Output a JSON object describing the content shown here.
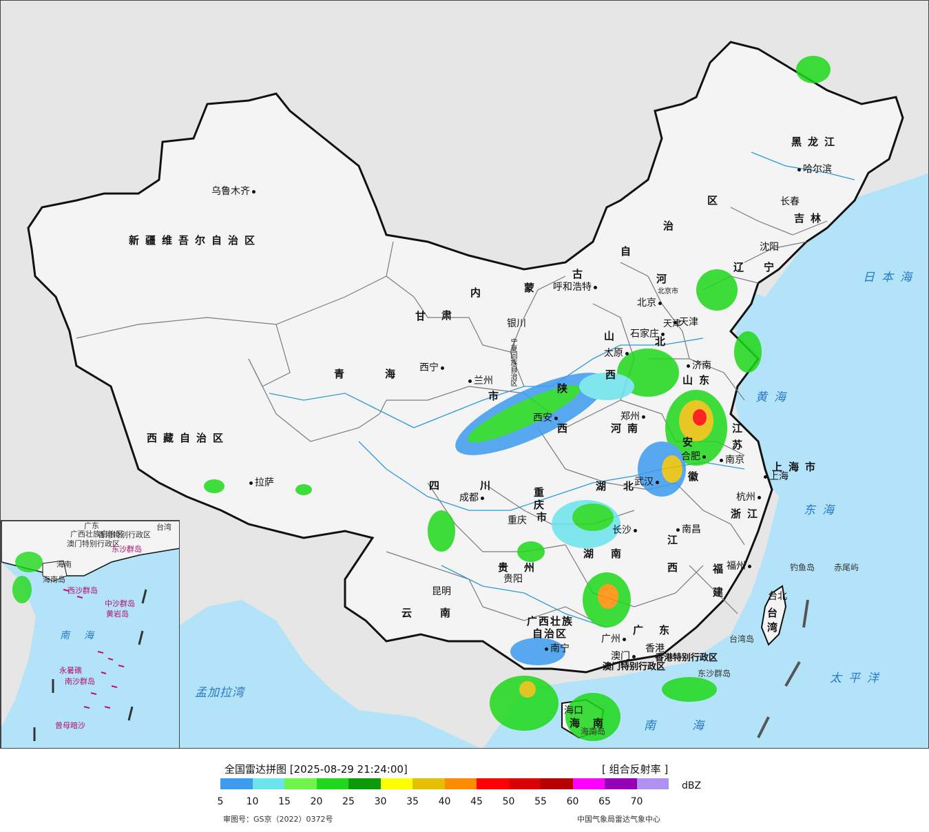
{
  "map": {
    "colors": {
      "sea": "#b3e3f8",
      "land_inside": "#f4f4f4",
      "land_outside": "#e6e6e6",
      "border": "#111111",
      "province_border": "#7a7a7a",
      "rivers": "#2a9ad8"
    },
    "provinces": [
      {
        "id": "xinjiang",
        "text": "新疆维吾尔自治区"
      },
      {
        "id": "xizang",
        "text": "西藏自治区"
      },
      {
        "id": "qinghai-a",
        "text": "青"
      },
      {
        "id": "qinghai-b",
        "text": "海"
      },
      {
        "id": "gansu-a",
        "text": "甘"
      },
      {
        "id": "gansu-b",
        "text": "肃"
      },
      {
        "id": "neimeng-a",
        "text": "内"
      },
      {
        "id": "neimeng-b",
        "text": "蒙"
      },
      {
        "id": "neimeng-c",
        "text": "古"
      },
      {
        "id": "neimeng-d",
        "text": "自"
      },
      {
        "id": "neimeng-e",
        "text": "治"
      },
      {
        "id": "neimeng-f",
        "text": "区"
      },
      {
        "id": "heilongjiang",
        "text": "黑龙江"
      },
      {
        "id": "jilin",
        "text": "吉林"
      },
      {
        "id": "liaoning-a",
        "text": "辽"
      },
      {
        "id": "liaoning-b",
        "text": "宁"
      },
      {
        "id": "hebei-a",
        "text": "河"
      },
      {
        "id": "hebei-b",
        "text": "北"
      },
      {
        "id": "shanxi-a",
        "text": "山"
      },
      {
        "id": "shanxi-b",
        "text": "西"
      },
      {
        "id": "shaanxi-a",
        "text": "陕"
      },
      {
        "id": "shaanxi-b",
        "text": "西"
      },
      {
        "id": "shandong",
        "text": "山东"
      },
      {
        "id": "henan",
        "text": "河南"
      },
      {
        "id": "jiangsu-a",
        "text": "江"
      },
      {
        "id": "jiangsu-b",
        "text": "苏"
      },
      {
        "id": "anhui-a",
        "text": "安"
      },
      {
        "id": "anhui-b",
        "text": "徽"
      },
      {
        "id": "shanghai",
        "text": "上海市"
      },
      {
        "id": "zhejiang",
        "text": "浙江"
      },
      {
        "id": "hubei-a",
        "text": "湖"
      },
      {
        "id": "hubei-b",
        "text": "北"
      },
      {
        "id": "sichuan-a",
        "text": "四"
      },
      {
        "id": "sichuan-b",
        "text": "川"
      },
      {
        "id": "chongqing-a",
        "text": "重"
      },
      {
        "id": "chongqing-b",
        "text": "庆"
      },
      {
        "id": "chongqing-c",
        "text": "市"
      },
      {
        "id": "hunan-a",
        "text": "湖"
      },
      {
        "id": "hunan-b",
        "text": "南"
      },
      {
        "id": "jiangxi-a",
        "text": "江"
      },
      {
        "id": "jiangxi-b",
        "text": "西"
      },
      {
        "id": "fujian-a",
        "text": "福"
      },
      {
        "id": "fujian-b",
        "text": "建"
      },
      {
        "id": "guizhou-a",
        "text": "贵"
      },
      {
        "id": "guizhou-b",
        "text": "州"
      },
      {
        "id": "yunnan-a",
        "text": "云"
      },
      {
        "id": "yunnan-b",
        "text": "南"
      },
      {
        "id": "guangxi-a",
        "text": "广西壮族"
      },
      {
        "id": "guangxi-b",
        "text": "自治区"
      },
      {
        "id": "guangdong-a",
        "text": "广"
      },
      {
        "id": "guangdong-b",
        "text": "东"
      },
      {
        "id": "hainan-a",
        "text": "海"
      },
      {
        "id": "hainan-b",
        "text": "南"
      },
      {
        "id": "taiwan-a",
        "text": "台"
      },
      {
        "id": "taiwan-b",
        "text": "湾"
      },
      {
        "id": "ningxia",
        "text": "宁夏回族自治区"
      },
      {
        "id": "tianjin",
        "text": "天津"
      },
      {
        "id": "hongkong",
        "text": "香港特别行政区"
      },
      {
        "id": "macau",
        "text": "澳门特别行政区"
      },
      {
        "id": "gansu-shi",
        "text": "市"
      }
    ],
    "seas": [
      {
        "id": "japan-sea",
        "text": "日本海"
      },
      {
        "id": "yellow-sea",
        "text": "黄海"
      },
      {
        "id": "east-sea",
        "text": "东海"
      },
      {
        "id": "pacific",
        "text": "太平洋"
      },
      {
        "id": "south-sea-a",
        "text": "南"
      },
      {
        "id": "south-sea-b",
        "text": "海"
      },
      {
        "id": "bengal",
        "text": "孟加拉湾"
      }
    ],
    "islands": [
      {
        "id": "diaoyu",
        "text": "钓鱼岛"
      },
      {
        "id": "chiwei",
        "text": "赤尾屿"
      },
      {
        "id": "taiwan-island",
        "text": "台湾岛"
      },
      {
        "id": "dongsha",
        "text": "东沙群岛"
      },
      {
        "id": "hainan-island",
        "text": "海南岛"
      }
    ],
    "cities": [
      {
        "id": "urumqi",
        "text": "乌鲁木齐"
      },
      {
        "id": "lhasa",
        "text": "拉萨"
      },
      {
        "id": "xining",
        "text": "西宁"
      },
      {
        "id": "lanzhou",
        "text": "兰州"
      },
      {
        "id": "yinchuan",
        "text": "银川"
      },
      {
        "id": "hohhot",
        "text": "呼和浩特"
      },
      {
        "id": "beijing",
        "text": "北京"
      },
      {
        "id": "beijing-city",
        "text": "北京市"
      },
      {
        "id": "tianjin-city",
        "text": "天津"
      },
      {
        "id": "shijiazhuang",
        "text": "石家庄"
      },
      {
        "id": "taiyuan",
        "text": "太原"
      },
      {
        "id": "jinan",
        "text": "济南"
      },
      {
        "id": "zhengzhou",
        "text": "郑州"
      },
      {
        "id": "xian",
        "text": "西安"
      },
      {
        "id": "nanjing",
        "text": "南京"
      },
      {
        "id": "hefei",
        "text": "合肥"
      },
      {
        "id": "shanghai-city",
        "text": "上海"
      },
      {
        "id": "hangzhou",
        "text": "杭州"
      },
      {
        "id": "wuhan",
        "text": "武汉"
      },
      {
        "id": "chengdu",
        "text": "成都"
      },
      {
        "id": "chongqing-city",
        "text": "重庆"
      },
      {
        "id": "changsha",
        "text": "长沙"
      },
      {
        "id": "nanchang",
        "text": "南昌"
      },
      {
        "id": "fuzhou",
        "text": "福州"
      },
      {
        "id": "taipei",
        "text": "台北"
      },
      {
        "id": "guiyang",
        "text": "贵阳"
      },
      {
        "id": "kunming",
        "text": "昆明"
      },
      {
        "id": "nanning",
        "text": "南宁"
      },
      {
        "id": "guangzhou",
        "text": "广州"
      },
      {
        "id": "hongkong-city",
        "text": "香港"
      },
      {
        "id": "macau-city",
        "text": "澳门"
      },
      {
        "id": "haikou",
        "text": "海口"
      },
      {
        "id": "shenyang",
        "text": "沈阳"
      },
      {
        "id": "changchun",
        "text": "长春"
      },
      {
        "id": "harbin",
        "text": "哈尔滨"
      }
    ],
    "inset": {
      "labels": [
        {
          "id": "i-guangxi",
          "text": "广西壮族自治区"
        },
        {
          "id": "i-guangdong",
          "text": "广东"
        },
        {
          "id": "i-hk",
          "text": "香港特别行政区"
        },
        {
          "id": "i-macau",
          "text": "澳门特别行政区"
        },
        {
          "id": "i-taiwan",
          "text": "台湾"
        },
        {
          "id": "i-dongsha",
          "text": "东沙群岛"
        },
        {
          "id": "i-hainan",
          "text": "海南"
        },
        {
          "id": "i-hainan-island",
          "text": "海南岛"
        },
        {
          "id": "i-xisha",
          "text": "西沙群岛"
        },
        {
          "id": "i-zhongsha",
          "text": "中沙群岛"
        },
        {
          "id": "i-huangyan",
          "text": "黄岩岛"
        },
        {
          "id": "i-southsea-a",
          "text": "南"
        },
        {
          "id": "i-southsea-b",
          "text": "海"
        },
        {
          "id": "i-yongshu",
          "text": "永暑礁"
        },
        {
          "id": "i-nansha",
          "text": "南沙群岛"
        },
        {
          "id": "i-zengmu",
          "text": "曾母暗沙"
        }
      ]
    }
  },
  "legend": {
    "title": "全国雷达拼图 [2025-08-29 21:24:00]",
    "product": "[ 组合反射率 ]",
    "unit": "dBZ",
    "levels": [
      5,
      10,
      15,
      20,
      25,
      30,
      35,
      40,
      45,
      50,
      55,
      60,
      65,
      70
    ],
    "colors": [
      "#3d9bf0",
      "#6be4ee",
      "#6ff54a",
      "#1fd81a",
      "#0c9a08",
      "#ffff00",
      "#e6c000",
      "#ff8c00",
      "#ff0000",
      "#d80000",
      "#b80000",
      "#ff00ff",
      "#9400b8",
      "#b090f0"
    ],
    "approval": "审图号：GS京（2022）0372号",
    "credit": "中国气象局雷达气象中心"
  }
}
